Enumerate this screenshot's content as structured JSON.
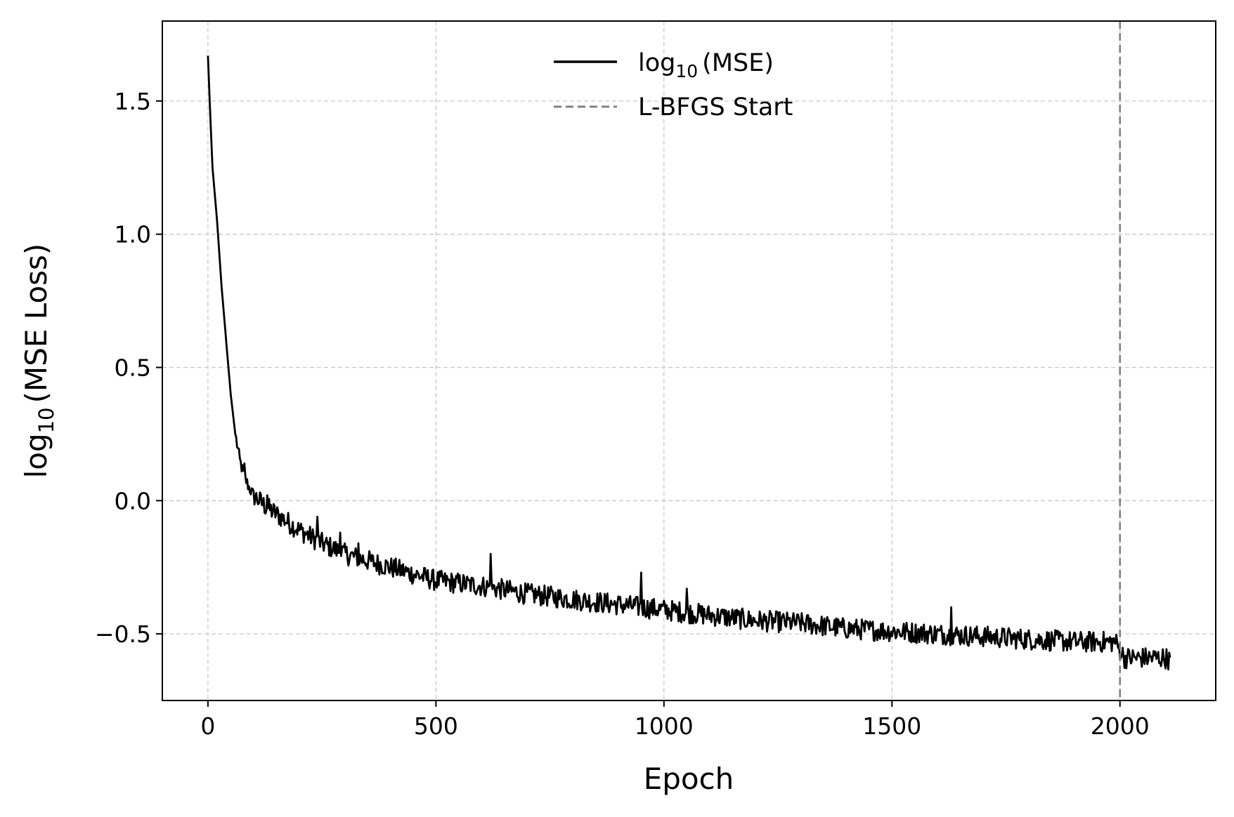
{
  "chart_data": {
    "type": "line",
    "xlabel": "Epoch",
    "ylabel_prefix": "log",
    "ylabel_sub": "10",
    "ylabel_suffix": "(MSE Loss)",
    "xlim": [
      -100,
      2210
    ],
    "ylim": [
      -0.75,
      1.8
    ],
    "x_ticks": [
      0,
      500,
      1000,
      1500,
      2000
    ],
    "x_tick_labels": [
      "0",
      "500",
      "1000",
      "1500",
      "2000"
    ],
    "y_ticks": [
      -0.5,
      0.0,
      0.5,
      1.0,
      1.5
    ],
    "y_tick_labels": [
      "−0.5",
      "0.0",
      "0.5",
      "1.0",
      "1.5"
    ],
    "grid": true,
    "legend_position": "top-center",
    "series": [
      {
        "name_prefix": "log",
        "name_sub": "10",
        "name_suffix": "(MSE)",
        "color": "#000000",
        "style": "solid",
        "x_start": 0,
        "x_end": 2110,
        "noise_amplitude": 0.025,
        "points": [
          [
            0,
            1.67
          ],
          [
            5,
            1.45
          ],
          [
            10,
            1.25
          ],
          [
            20,
            1.05
          ],
          [
            30,
            0.8
          ],
          [
            40,
            0.6
          ],
          [
            50,
            0.4
          ],
          [
            60,
            0.25
          ],
          [
            70,
            0.15
          ],
          [
            80,
            0.09
          ],
          [
            90,
            0.05
          ],
          [
            100,
            0.02
          ],
          [
            125,
            -0.02
          ],
          [
            150,
            -0.05
          ],
          [
            175,
            -0.08
          ],
          [
            200,
            -0.11
          ],
          [
            250,
            -0.16
          ],
          [
            300,
            -0.2
          ],
          [
            400,
            -0.25
          ],
          [
            500,
            -0.3
          ],
          [
            600,
            -0.32
          ],
          [
            700,
            -0.35
          ],
          [
            800,
            -0.37
          ],
          [
            900,
            -0.39
          ],
          [
            1000,
            -0.41
          ],
          [
            1100,
            -0.43
          ],
          [
            1200,
            -0.45
          ],
          [
            1300,
            -0.46
          ],
          [
            1400,
            -0.48
          ],
          [
            1500,
            -0.49
          ],
          [
            1600,
            -0.5
          ],
          [
            1700,
            -0.51
          ],
          [
            1800,
            -0.52
          ],
          [
            1900,
            -0.53
          ],
          [
            1990,
            -0.53
          ],
          [
            2000,
            -0.56
          ],
          [
            2010,
            -0.59
          ],
          [
            2100,
            -0.59
          ],
          [
            2110,
            -0.6
          ]
        ],
        "spikes": [
          [
            80,
            0.14
          ],
          [
            130,
            0.02
          ],
          [
            165,
            0.0
          ],
          [
            240,
            -0.06
          ],
          [
            290,
            -0.12
          ],
          [
            330,
            -0.16
          ],
          [
            620,
            -0.2
          ],
          [
            950,
            -0.27
          ],
          [
            1050,
            -0.33
          ],
          [
            1630,
            -0.4
          ],
          [
            2105,
            -0.46
          ]
        ]
      },
      {
        "name": "L-BFGS Start",
        "color": "#808080",
        "style": "dashed",
        "x": 2000
      }
    ]
  }
}
